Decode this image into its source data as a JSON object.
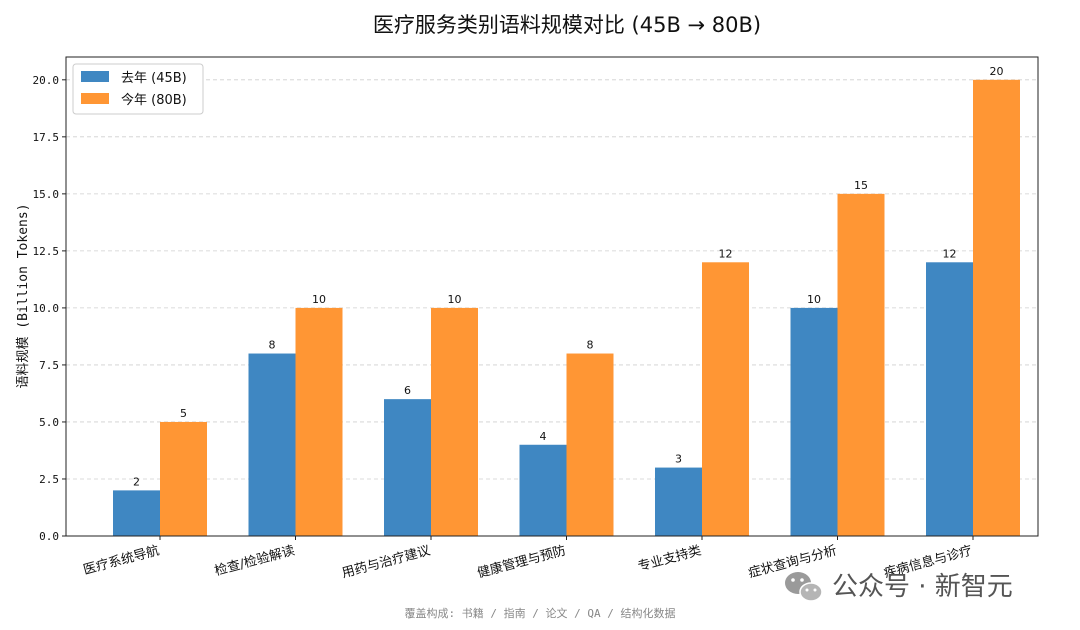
{
  "chart_data": {
    "type": "bar",
    "title": "医疗服务类别语料规模对比 (45B → 80B)",
    "xlabel": "",
    "ylabel": "语料规模 (Billion Tokens)",
    "ylim": [
      0,
      21
    ],
    "yticks": [
      "0.0",
      "2.5",
      "5.0",
      "7.5",
      "10.0",
      "12.5",
      "15.0",
      "17.5",
      "20.0"
    ],
    "categories": [
      "医疗系统导航",
      "检查/检验解读",
      "用药与治疗建议",
      "健康管理与预防",
      "专业支持类",
      "症状查询与分析",
      "疾病信息与诊疗"
    ],
    "series": [
      {
        "name": "去年 (45B)",
        "values": [
          2,
          8,
          6,
          4,
          3,
          10,
          12
        ],
        "color": "#3f87c2"
      },
      {
        "name": "今年 (80B)",
        "values": [
          5,
          10,
          10,
          8,
          12,
          15,
          20
        ],
        "color": "#ff9634"
      }
    ],
    "grid": true,
    "legend_position": "top-left"
  },
  "footer_text": "覆盖构成: 书籍 / 指南 / 论文 / QA / 结构化数据",
  "watermark": {
    "text": "公众号 · 新智元",
    "icon": "wechat-icon"
  }
}
